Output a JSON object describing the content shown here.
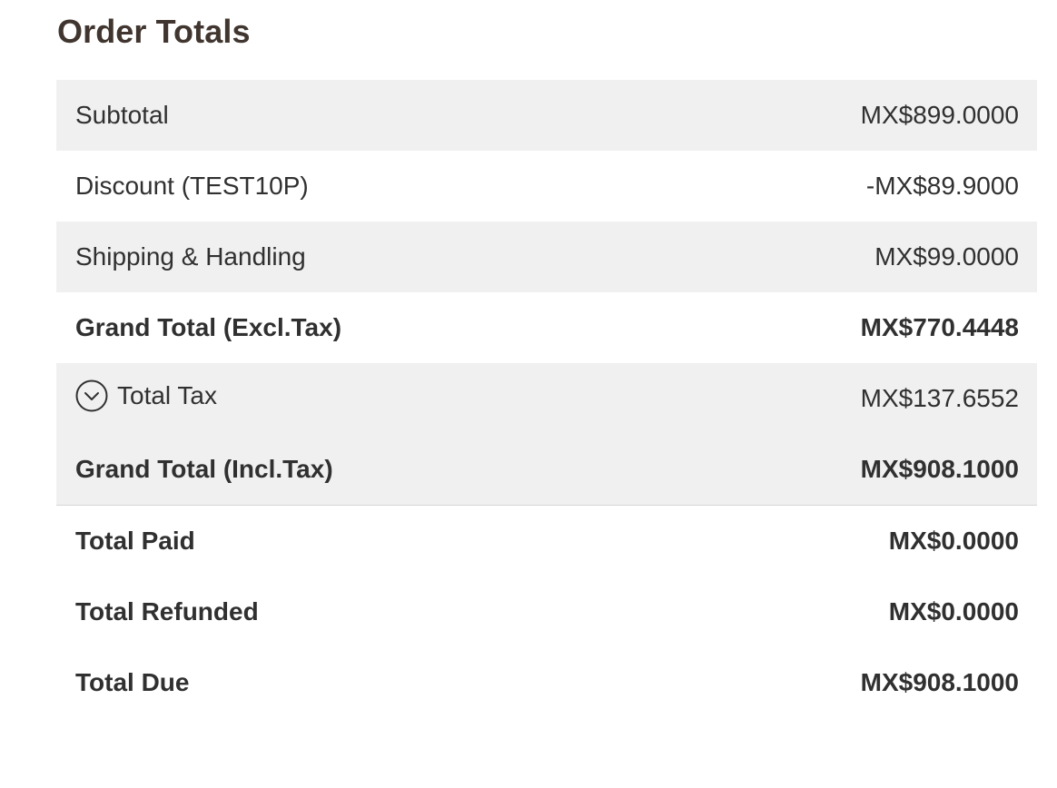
{
  "page": {
    "title": "Order Totals"
  },
  "totals": {
    "subtotal": {
      "label": "Subtotal",
      "value": "MX$899.0000"
    },
    "discount": {
      "label": "Discount (TEST10P)",
      "value": "-MX$89.9000"
    },
    "shipping": {
      "label": "Shipping & Handling",
      "value": "MX$99.0000"
    },
    "grand_total_excl": {
      "label": "Grand Total (Excl.Tax)",
      "value": "MX$770.4448"
    },
    "total_tax": {
      "label": "Total Tax",
      "value": "MX$137.6552",
      "icon": "chevron-down-circle-icon"
    },
    "grand_total_incl": {
      "label": "Grand Total (Incl.Tax)",
      "value": "MX$908.1000"
    },
    "total_paid": {
      "label": "Total Paid",
      "value": "MX$0.0000"
    },
    "total_refunded": {
      "label": "Total Refunded",
      "value": "MX$0.0000"
    },
    "total_due": {
      "label": "Total Due",
      "value": "MX$908.1000"
    }
  },
  "colors": {
    "title": "#41362f",
    "text": "#303030",
    "row_shade": "#f0f0f0",
    "divider": "#d6d6d6"
  }
}
